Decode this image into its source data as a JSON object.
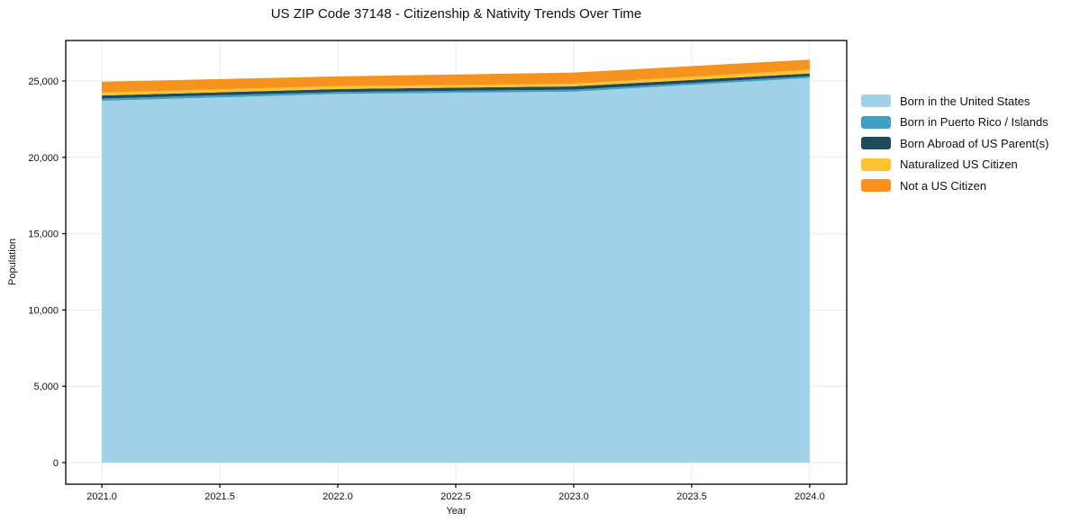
{
  "chart_data": {
    "type": "area",
    "stacked": true,
    "title": "US ZIP Code 37148 - Citizenship & Nativity Trends Over Time",
    "xlabel": "Year",
    "ylabel": "Population",
    "x": [
      2021,
      2022,
      2023,
      2024
    ],
    "series": [
      {
        "name": "Born in the United States",
        "color": "#a1d1e7",
        "values": [
          23700,
          24150,
          24300,
          25200
        ]
      },
      {
        "name": "Born in Puerto Rico / Islands",
        "color": "#3fa0c3",
        "values": [
          150,
          130,
          130,
          120
        ]
      },
      {
        "name": "Born Abroad of US Parent(s)",
        "color": "#1f4a5c",
        "values": [
          200,
          190,
          220,
          170
        ]
      },
      {
        "name": "Naturalized US Citizen",
        "color": "#fcc332",
        "values": [
          200,
          190,
          170,
          250
        ]
      },
      {
        "name": "Not a US Citizen",
        "color": "#f6921e",
        "values": [
          700,
          640,
          730,
          660
        ]
      }
    ],
    "stack_totals": [
      24950,
      25300,
      25550,
      26400
    ],
    "xticks": [
      {
        "value": 2021.0,
        "label": "2021.0"
      },
      {
        "value": 2021.5,
        "label": "2021.5"
      },
      {
        "value": 2022.0,
        "label": "2022.0"
      },
      {
        "value": 2022.5,
        "label": "2022.5"
      },
      {
        "value": 2023.0,
        "label": "2023.0"
      },
      {
        "value": 2023.5,
        "label": "2023.5"
      },
      {
        "value": 2024.0,
        "label": "2024.0"
      }
    ],
    "yticks": [
      {
        "value": 0,
        "label": "0"
      },
      {
        "value": 5000,
        "label": "5,000"
      },
      {
        "value": 10000,
        "label": "10,000"
      },
      {
        "value": 15000,
        "label": "15,000"
      },
      {
        "value": 20000,
        "label": "20,000"
      },
      {
        "value": 25000,
        "label": "25,000"
      }
    ],
    "xlim": [
      2020.847,
      2024.157
    ],
    "ylim": [
      -1415,
      27653
    ],
    "grid": true,
    "legend_position": "right",
    "colors": {
      "grid": "#e9e9e9",
      "spine": "#000000",
      "text": "#111111",
      "background": "#ffffff"
    }
  }
}
